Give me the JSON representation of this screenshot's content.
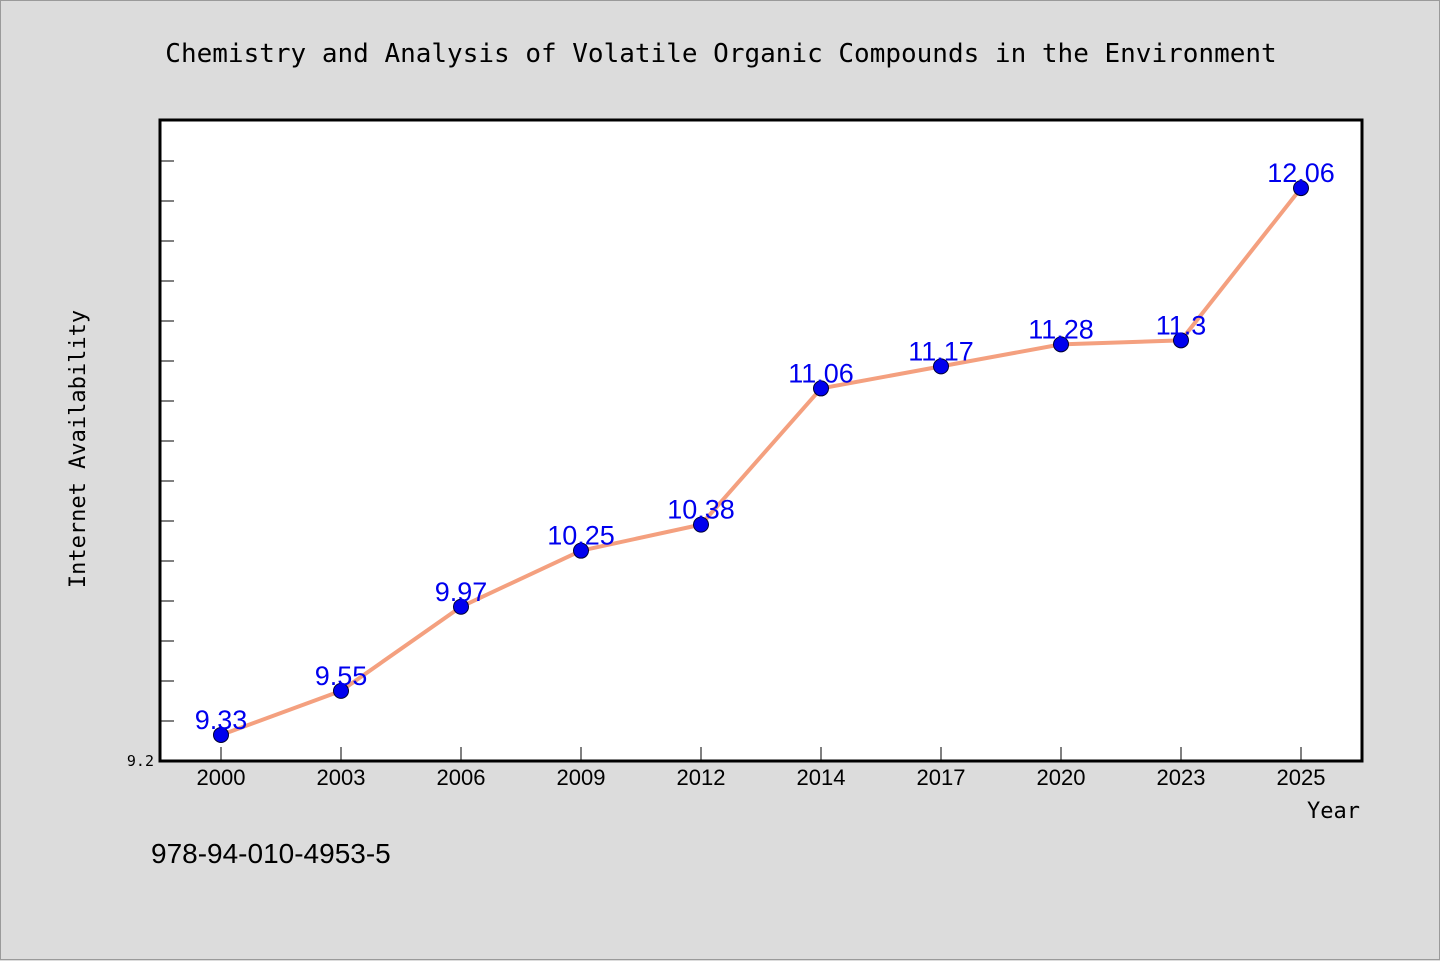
{
  "colors": {
    "background": "#dcdcdc",
    "plot_background": "#ffffff",
    "line": "#f4a07f",
    "marker": "#0000ee",
    "label": "#0000ee"
  },
  "footer_text": "978-94-010-4953-5",
  "chart_data": {
    "type": "line",
    "title": "Chemistry and Analysis of Volatile Organic Compounds in the Environment",
    "xlabel": "Year",
    "ylabel": "Internet Availability",
    "categories": [
      "2000",
      "2003",
      "2006",
      "2009",
      "2012",
      "2014",
      "2017",
      "2020",
      "2023",
      "2025"
    ],
    "series": [
      {
        "values": [
          9.33,
          9.55,
          9.97,
          10.25,
          10.38,
          11.06,
          11.17,
          11.28,
          11.3,
          12.06
        ]
      }
    ],
    "data_labels": [
      "9.33",
      "9.55",
      "9.97",
      "10.25",
      "10.38",
      "11.06",
      "11.17",
      "11.28",
      "11.3",
      "12.06"
    ],
    "ylim": [
      9.2,
      12.4
    ],
    "ytick_labels": [
      "9.2"
    ],
    "grid": false,
    "legend": "none"
  }
}
